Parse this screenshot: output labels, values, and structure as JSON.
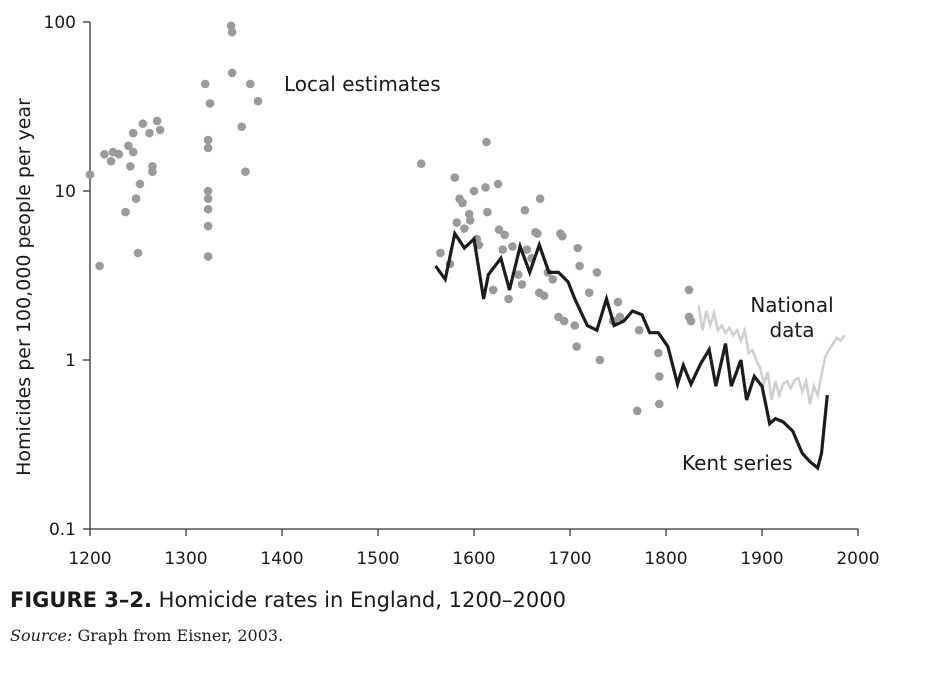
{
  "chart_data": {
    "type": "scatter",
    "yscale": "log",
    "xlim": [
      1200,
      2000
    ],
    "ylim": [
      0.1,
      100
    ],
    "xticks": [
      1200,
      1300,
      1400,
      1500,
      1600,
      1700,
      1800,
      1900,
      2000
    ],
    "yticks": [
      0.1,
      1,
      10,
      100
    ],
    "ytick_labels": [
      "0.1",
      "1",
      "10",
      "100"
    ],
    "ylabel": "Homicides per 100,000 people per year",
    "series": [
      {
        "name": "Local estimates",
        "kind": "scatter",
        "color": "#9a9a9b",
        "points": [
          [
            1200,
            12.5
          ],
          [
            1210,
            3.6
          ],
          [
            1215,
            16.5
          ],
          [
            1222,
            15.0
          ],
          [
            1224,
            17.0
          ],
          [
            1230,
            16.5
          ],
          [
            1237,
            7.5
          ],
          [
            1240,
            18.5
          ],
          [
            1242,
            14.0
          ],
          [
            1245,
            22.0
          ],
          [
            1245,
            17.0
          ],
          [
            1248,
            9.0
          ],
          [
            1250,
            4.3
          ],
          [
            1252,
            11.0
          ],
          [
            1255,
            25.0
          ],
          [
            1262,
            22.0
          ],
          [
            1265,
            14.0
          ],
          [
            1265,
            13.0
          ],
          [
            1270,
            26.0
          ],
          [
            1273,
            23.0
          ],
          [
            1320,
            43.0
          ],
          [
            1323,
            10.0
          ],
          [
            1323,
            9.0
          ],
          [
            1323,
            7.8
          ],
          [
            1323,
            6.2
          ],
          [
            1323,
            4.1
          ],
          [
            1323,
            20.0
          ],
          [
            1323,
            18.0
          ],
          [
            1325,
            33.0
          ],
          [
            1347,
            95.0
          ],
          [
            1348,
            87.0
          ],
          [
            1348,
            50.0
          ],
          [
            1358,
            24.0
          ],
          [
            1362,
            13.0
          ],
          [
            1367,
            43.0
          ],
          [
            1375,
            34.0
          ],
          [
            1545,
            14.5
          ],
          [
            1565,
            4.3
          ],
          [
            1575,
            3.7
          ],
          [
            1580,
            12.0
          ],
          [
            1582,
            6.5
          ],
          [
            1585,
            9.0
          ],
          [
            1588,
            8.5
          ],
          [
            1590,
            6.0
          ],
          [
            1595,
            7.3
          ],
          [
            1596,
            6.7
          ],
          [
            1600,
            10.0
          ],
          [
            1603,
            5.2
          ],
          [
            1605,
            4.8
          ],
          [
            1612,
            10.5
          ],
          [
            1613,
            19.5
          ],
          [
            1614,
            7.5
          ],
          [
            1620,
            2.6
          ],
          [
            1625,
            11.0
          ],
          [
            1626,
            5.9
          ],
          [
            1630,
            4.5
          ],
          [
            1632,
            5.5
          ],
          [
            1636,
            2.3
          ],
          [
            1640,
            4.7
          ],
          [
            1646,
            3.2
          ],
          [
            1650,
            2.8
          ],
          [
            1653,
            7.7
          ],
          [
            1655,
            4.5
          ],
          [
            1660,
            4.0
          ],
          [
            1664,
            5.7
          ],
          [
            1666,
            5.6
          ],
          [
            1668,
            2.5
          ],
          [
            1669,
            9.0
          ],
          [
            1673,
            2.4
          ],
          [
            1677,
            3.3
          ],
          [
            1682,
            3.0
          ],
          [
            1688,
            1.8
          ],
          [
            1690,
            5.6
          ],
          [
            1692,
            5.4
          ],
          [
            1694,
            1.7
          ],
          [
            1705,
            1.6
          ],
          [
            1707,
            1.2
          ],
          [
            1708,
            4.6
          ],
          [
            1710,
            3.6
          ],
          [
            1720,
            2.5
          ],
          [
            1728,
            3.3
          ],
          [
            1731,
            1.0
          ],
          [
            1745,
            1.7
          ],
          [
            1750,
            2.2
          ],
          [
            1752,
            1.8
          ],
          [
            1770,
            0.5
          ],
          [
            1772,
            1.5
          ],
          [
            1792,
            1.1
          ],
          [
            1793,
            0.8
          ],
          [
            1793,
            0.55
          ],
          [
            1824,
            2.6
          ],
          [
            1824,
            1.8
          ],
          [
            1826,
            1.7
          ]
        ]
      },
      {
        "name": "Kent series",
        "kind": "line",
        "color": "#1c1c1c",
        "points": [
          [
            1560,
            3.6
          ],
          [
            1570,
            3.0
          ],
          [
            1580,
            5.6
          ],
          [
            1590,
            4.6
          ],
          [
            1600,
            5.2
          ],
          [
            1610,
            2.3
          ],
          [
            1615,
            3.2
          ],
          [
            1628,
            4.0
          ],
          [
            1637,
            2.6
          ],
          [
            1648,
            4.7
          ],
          [
            1658,
            3.3
          ],
          [
            1668,
            4.8
          ],
          [
            1678,
            3.3
          ],
          [
            1688,
            3.3
          ],
          [
            1698,
            2.9
          ],
          [
            1705,
            2.3
          ],
          [
            1718,
            1.6
          ],
          [
            1728,
            1.5
          ],
          [
            1738,
            2.3
          ],
          [
            1746,
            1.6
          ],
          [
            1756,
            1.7
          ],
          [
            1765,
            1.95
          ],
          [
            1775,
            1.85
          ],
          [
            1783,
            1.45
          ],
          [
            1792,
            1.45
          ],
          [
            1802,
            1.2
          ],
          [
            1812,
            0.72
          ],
          [
            1818,
            0.93
          ],
          [
            1826,
            0.72
          ],
          [
            1836,
            0.95
          ],
          [
            1845,
            1.15
          ],
          [
            1852,
            0.7
          ],
          [
            1862,
            1.25
          ],
          [
            1868,
            0.7
          ],
          [
            1878,
            1.0
          ],
          [
            1884,
            0.58
          ],
          [
            1892,
            0.8
          ],
          [
            1900,
            0.7
          ],
          [
            1908,
            0.42
          ],
          [
            1914,
            0.45
          ],
          [
            1922,
            0.43
          ],
          [
            1932,
            0.38
          ],
          [
            1942,
            0.28
          ],
          [
            1950,
            0.25
          ],
          [
            1958,
            0.23
          ],
          [
            1962,
            0.28
          ],
          [
            1968,
            0.62
          ]
        ]
      },
      {
        "name": "National data",
        "kind": "line",
        "color": "#cfcfcf",
        "points": [
          [
            1834,
            2.1
          ],
          [
            1838,
            1.5
          ],
          [
            1842,
            1.95
          ],
          [
            1846,
            1.6
          ],
          [
            1850,
            1.9
          ],
          [
            1854,
            1.5
          ],
          [
            1858,
            1.6
          ],
          [
            1862,
            1.45
          ],
          [
            1866,
            1.55
          ],
          [
            1870,
            1.4
          ],
          [
            1874,
            1.5
          ],
          [
            1878,
            1.3
          ],
          [
            1882,
            1.5
          ],
          [
            1886,
            1.1
          ],
          [
            1890,
            1.15
          ],
          [
            1894,
            1.0
          ],
          [
            1898,
            0.9
          ],
          [
            1902,
            0.72
          ],
          [
            1906,
            0.85
          ],
          [
            1910,
            0.58
          ],
          [
            1914,
            0.75
          ],
          [
            1918,
            0.62
          ],
          [
            1922,
            0.72
          ],
          [
            1926,
            0.75
          ],
          [
            1930,
            0.68
          ],
          [
            1934,
            0.76
          ],
          [
            1938,
            0.78
          ],
          [
            1942,
            0.65
          ],
          [
            1946,
            0.75
          ],
          [
            1950,
            0.55
          ],
          [
            1954,
            0.7
          ],
          [
            1958,
            0.62
          ],
          [
            1962,
            0.82
          ],
          [
            1966,
            1.05
          ],
          [
            1970,
            1.15
          ],
          [
            1974,
            1.25
          ],
          [
            1978,
            1.35
          ],
          [
            1982,
            1.3
          ],
          [
            1986,
            1.4
          ]
        ]
      }
    ],
    "annotations": {
      "local_estimates": "Local estimates",
      "national_line1": "National",
      "national_line2": "data",
      "kent_series": "Kent series"
    }
  },
  "caption": {
    "figure_label": "FIGURE 3–2.",
    "title": "Homicide rates in England, 1200–2000",
    "source_label": "Source:",
    "source_text": "Graph from Eisner, 2003."
  }
}
